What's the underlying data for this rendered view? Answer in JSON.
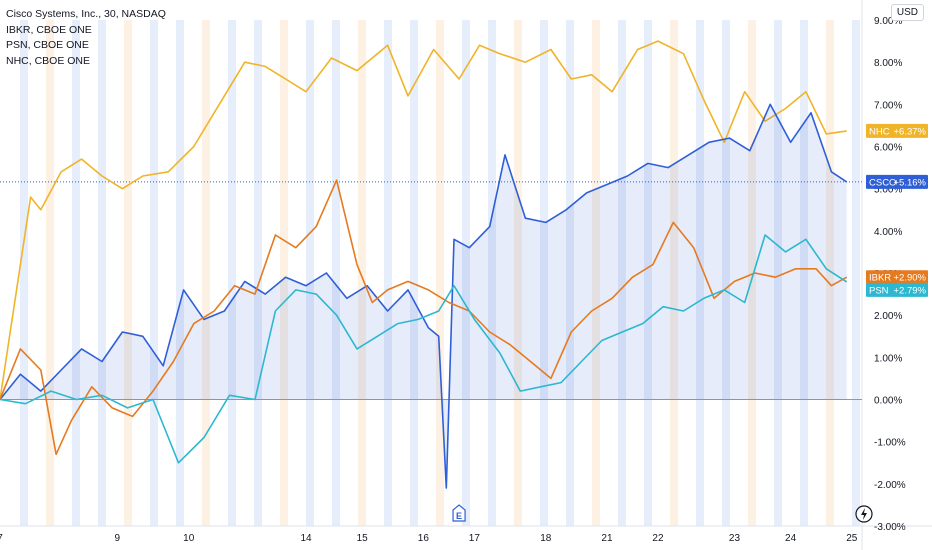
{
  "legend": [
    {
      "label": "Cisco Systems, Inc., 30, NASDAQ"
    },
    {
      "label": "IBKR, CBOE ONE"
    },
    {
      "label": "PSN, CBOE ONE"
    },
    {
      "label": "NHC, CBOE ONE"
    }
  ],
  "currency": "USD",
  "earnings_marker": "E",
  "colors": {
    "csco": "#2f5fd7",
    "nhc": "#f0b429",
    "ibkr": "#e57a1f",
    "psn": "#2cb8d0",
    "session_blue": "#e3ebfb",
    "session_orange": "#fdf0e0",
    "zero_line": "#8d97b0"
  },
  "chart_data": {
    "type": "line",
    "title": "Cisco Systems, Inc., 30, NASDAQ",
    "y_axis": {
      "unit": "%",
      "ylim": [
        -3.0,
        9.0
      ],
      "ticks": [
        "9.00%",
        "8.00%",
        "7.00%",
        "6.00%",
        "5.00%",
        "4.00%",
        "3.00%",
        "2.00%",
        "1.00%",
        "0.00%",
        "-1.00%",
        "-2.00%",
        "-3.00%"
      ]
    },
    "x_axis": {
      "ticks": [
        "7",
        "9",
        "10",
        "14",
        "15",
        "16",
        "17",
        "18",
        "21",
        "22",
        "23",
        "24",
        "25"
      ],
      "tick_x": [
        0,
        2.3,
        3.7,
        6.0,
        7.1,
        8.3,
        9.3,
        10.7,
        11.9,
        12.9,
        14.4,
        15.5,
        16.7
      ]
    },
    "xlim": [
      0,
      16.9
    ],
    "price_labels": [
      {
        "symbol": "NHC",
        "value": "+6.37%",
        "y": 6.37,
        "color": "#f0b429"
      },
      {
        "symbol": "CSCO",
        "value": "+5.16%",
        "y": 5.16,
        "color": "#2f5fd7"
      },
      {
        "symbol": "IBKR",
        "value": "+2.90%",
        "y": 2.9,
        "color": "#e57a1f"
      },
      {
        "symbol": "PSN",
        "value": "+2.79%",
        "y": 2.6,
        "color": "#2cb8d0"
      }
    ],
    "current_line": 5.16,
    "series": [
      {
        "name": "NHC, CBOE ONE",
        "color": "#f0b429",
        "x": [
          0,
          0.3,
          0.6,
          0.8,
          1.2,
          1.6,
          2.0,
          2.4,
          2.8,
          3.3,
          3.8,
          4.3,
          4.8,
          5.2,
          5.6,
          6.0,
          6.5,
          7.0,
          7.6,
          8.0,
          8.5,
          9.0,
          9.4,
          9.8,
          10.3,
          10.8,
          11.2,
          11.6,
          12.0,
          12.5,
          12.9,
          13.4,
          13.8,
          14.2,
          14.6,
          15.0,
          15.4,
          15.8,
          16.2,
          16.6
        ],
        "y": [
          0.0,
          2.4,
          4.8,
          4.5,
          5.4,
          5.7,
          5.3,
          5.0,
          5.3,
          5.4,
          6.0,
          7.0,
          8.0,
          7.9,
          7.6,
          7.3,
          8.1,
          7.8,
          8.4,
          7.2,
          8.3,
          7.6,
          8.4,
          8.2,
          8.0,
          8.3,
          7.6,
          7.7,
          7.3,
          8.3,
          8.5,
          8.2,
          7.1,
          6.1,
          7.3,
          6.6,
          6.9,
          7.3,
          6.3,
          6.37
        ]
      },
      {
        "name": "Cisco Systems, Inc., 30, NASDAQ",
        "color": "#2f5fd7",
        "fill": true,
        "x": [
          0,
          0.4,
          0.8,
          1.2,
          1.6,
          2.0,
          2.4,
          2.8,
          3.2,
          3.6,
          4.0,
          4.4,
          4.8,
          5.2,
          5.6,
          6.0,
          6.4,
          6.8,
          7.2,
          7.6,
          8.0,
          8.4,
          8.6,
          8.75,
          8.9,
          9.2,
          9.6,
          9.9,
          10.3,
          10.7,
          11.1,
          11.5,
          11.9,
          12.3,
          12.7,
          13.1,
          13.5,
          13.9,
          14.3,
          14.7,
          15.1,
          15.5,
          15.9,
          16.3,
          16.6
        ],
        "y": [
          0.0,
          0.6,
          0.2,
          0.7,
          1.2,
          0.9,
          1.6,
          1.5,
          0.8,
          2.6,
          1.9,
          2.1,
          2.8,
          2.5,
          2.9,
          2.7,
          3.0,
          2.4,
          2.7,
          2.1,
          2.6,
          1.7,
          1.5,
          -2.1,
          3.8,
          3.6,
          4.1,
          5.8,
          4.3,
          4.2,
          4.5,
          4.9,
          5.1,
          5.3,
          5.6,
          5.5,
          5.8,
          6.1,
          6.2,
          5.9,
          7.0,
          6.1,
          6.8,
          5.4,
          5.16
        ]
      },
      {
        "name": "IBKR, CBOE ONE",
        "color": "#e57a1f",
        "x": [
          0,
          0.4,
          0.8,
          1.1,
          1.4,
          1.8,
          2.2,
          2.6,
          3.0,
          3.4,
          3.8,
          4.2,
          4.6,
          5.0,
          5.4,
          5.8,
          6.2,
          6.6,
          7.0,
          7.3,
          7.6,
          8.0,
          8.4,
          8.8,
          9.2,
          9.6,
          10.0,
          10.4,
          10.8,
          11.2,
          11.6,
          12.0,
          12.4,
          12.8,
          13.2,
          13.6,
          14.0,
          14.4,
          14.8,
          15.2,
          15.6,
          16.0,
          16.3,
          16.6
        ],
        "y": [
          0.0,
          1.2,
          0.7,
          -1.3,
          -0.5,
          0.3,
          -0.2,
          -0.4,
          0.2,
          0.9,
          1.8,
          2.1,
          2.7,
          2.5,
          3.9,
          3.6,
          4.1,
          5.2,
          3.2,
          2.3,
          2.6,
          2.8,
          2.6,
          2.3,
          2.1,
          1.6,
          1.3,
          0.9,
          0.5,
          1.6,
          2.1,
          2.4,
          2.9,
          3.2,
          4.2,
          3.6,
          2.4,
          2.8,
          3.0,
          2.9,
          3.1,
          3.1,
          2.7,
          2.9
        ]
      },
      {
        "name": "PSN, CBOE ONE",
        "color": "#2cb8d0",
        "x": [
          0,
          0.5,
          1.0,
          1.5,
          2.0,
          2.5,
          3.0,
          3.5,
          4.0,
          4.5,
          5.0,
          5.4,
          5.8,
          6.2,
          6.6,
          7.0,
          7.4,
          7.8,
          8.2,
          8.6,
          8.9,
          9.3,
          9.8,
          10.2,
          10.6,
          11.0,
          11.4,
          11.8,
          12.2,
          12.6,
          13.0,
          13.4,
          13.8,
          14.2,
          14.6,
          15.0,
          15.4,
          15.8,
          16.2,
          16.6
        ],
        "y": [
          0.0,
          -0.1,
          0.2,
          0.0,
          0.1,
          -0.2,
          0.0,
          -1.5,
          -0.9,
          0.1,
          0.0,
          2.1,
          2.6,
          2.5,
          2.0,
          1.2,
          1.5,
          1.8,
          1.9,
          2.1,
          2.7,
          1.9,
          1.1,
          0.2,
          0.3,
          0.4,
          0.9,
          1.4,
          1.6,
          1.8,
          2.2,
          2.1,
          2.4,
          2.6,
          2.3,
          3.9,
          3.5,
          3.8,
          3.1,
          2.79
        ]
      }
    ]
  }
}
